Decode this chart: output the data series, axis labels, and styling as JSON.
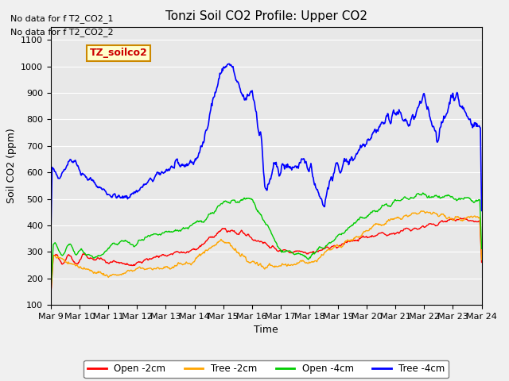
{
  "title": "Tonzi Soil CO2 Profile: Upper CO2",
  "xlabel": "Time",
  "ylabel": "Soil CO2 (ppm)",
  "ylim": [
    100,
    1150
  ],
  "yticks": [
    100,
    200,
    300,
    400,
    500,
    600,
    700,
    800,
    900,
    1000,
    1100
  ],
  "no_data_text": [
    "No data for f T2_CO2_1",
    "No data for f T2_CO2_2"
  ],
  "legend_label": "TZ_soilco2",
  "bg_color": "#e8e8e8",
  "line_colors": {
    "open2": "#ff0000",
    "tree2": "#ffa500",
    "open4": "#00cc00",
    "tree4": "#0000ff"
  },
  "legend_labels": [
    "Open -2cm",
    "Tree -2cm",
    "Open -4cm",
    "Tree -4cm"
  ],
  "xtick_labels": [
    "Mar 9",
    "Mar 10",
    "Mar 11",
    "Mar 12",
    "Mar 13",
    "Mar 14",
    "Mar 15",
    "Mar 16",
    "Mar 17",
    "Mar 18",
    "Mar 19",
    "Mar 20",
    "Mar 21",
    "Mar 22",
    "Mar 23",
    "Mar 24"
  ],
  "n_days": 15,
  "pts_per_day": 48
}
